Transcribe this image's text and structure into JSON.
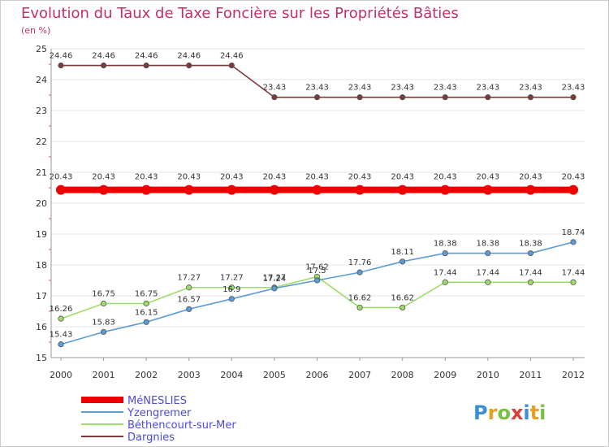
{
  "chart_data": {
    "type": "line",
    "title": "Evolution du Taux de Taxe Foncière sur les Propriétés Bâties",
    "subtitle": "(en %)",
    "xlabel": "",
    "ylabel": "",
    "categories": [
      "2000",
      "2001",
      "2002",
      "2003",
      "2004",
      "2005",
      "2006",
      "2007",
      "2008",
      "2009",
      "2010",
      "2011",
      "2012"
    ],
    "ylim": [
      15,
      25
    ],
    "yticks": [
      15,
      16,
      17,
      18,
      19,
      20,
      21,
      22,
      23,
      24,
      25
    ],
    "grid": "horizontal",
    "legend_position": "bottom-left",
    "series": [
      {
        "name": "MéNESLIES",
        "color": "#ee0000",
        "values": [
          20.43,
          20.43,
          20.43,
          20.43,
          20.43,
          20.43,
          20.43,
          20.43,
          20.43,
          20.43,
          20.43,
          20.43,
          20.43
        ],
        "labels": [
          "20.43",
          "20.43",
          "20.43",
          "20.43",
          "20.43",
          "20.43",
          "20.43",
          "20.43",
          "20.43",
          "20.43",
          "20.43",
          "20.43",
          "20.43"
        ]
      },
      {
        "name": "Yzengremer",
        "color": "#5b9bd5",
        "values": [
          15.43,
          15.83,
          16.15,
          16.57,
          16.9,
          17.24,
          17.5,
          17.76,
          18.11,
          18.38,
          18.38,
          18.38,
          18.74
        ],
        "labels": [
          "15.43",
          "15.83",
          "16.15",
          "16.57",
          "16.9",
          "17.24",
          "17.5",
          "17.76",
          "18.11",
          "18.38",
          "18.38",
          "18.38",
          "18.74"
        ]
      },
      {
        "name": "Béthencourt-sur-Mer",
        "color": "#9ddc6a",
        "values": [
          16.26,
          16.75,
          16.75,
          17.27,
          17.27,
          17.27,
          17.62,
          16.62,
          16.62,
          17.44,
          17.44,
          17.44,
          17.44
        ],
        "labels": [
          "16.26",
          "16.75",
          "16.75",
          "17.27",
          "17.27",
          "17.27",
          "17.62",
          "16.62",
          "16.62",
          "17.44",
          "17.44",
          "17.44",
          "17.44"
        ]
      },
      {
        "name": "Dargnies",
        "color": "#7b3a3a",
        "values": [
          24.46,
          24.46,
          24.46,
          24.46,
          24.46,
          23.43,
          23.43,
          23.43,
          23.43,
          23.43,
          23.43,
          23.43,
          23.43
        ],
        "labels": [
          "24.46",
          "24.46",
          "24.46",
          "24.46",
          "24.46",
          "23.43",
          "23.43",
          "23.43",
          "23.43",
          "23.43",
          "23.43",
          "23.43",
          "23.43"
        ]
      }
    ]
  },
  "logo": {
    "text": "Proxiti"
  }
}
